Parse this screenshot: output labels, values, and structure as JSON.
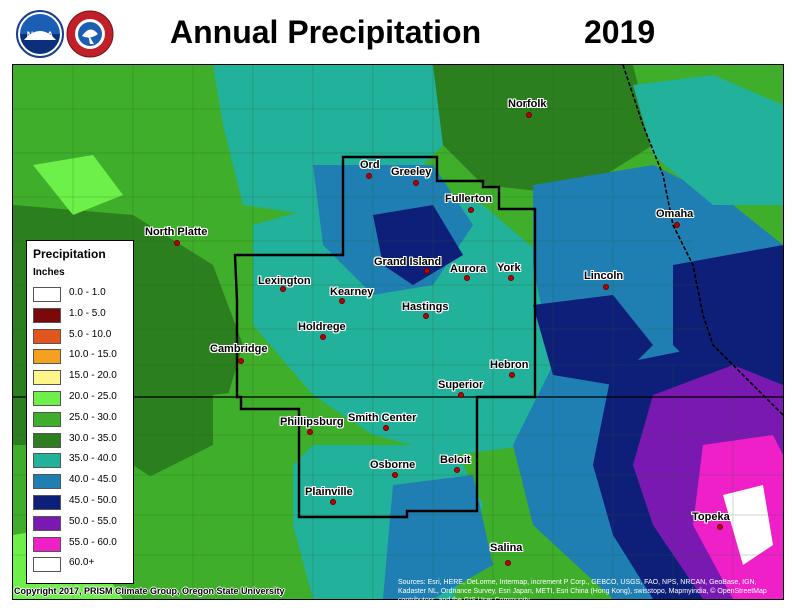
{
  "header": {
    "title": "Annual Precipitation",
    "year": "2019"
  },
  "logos": [
    {
      "name": "noaa-logo",
      "text": "NOAA"
    },
    {
      "name": "nws-logo",
      "text": "NATIONAL WEATHER SERVICE"
    }
  ],
  "legend": {
    "title": "Precipitation",
    "unit": "Inches",
    "items": [
      {
        "label": "0.0 - 1.0",
        "color": "#ffffff"
      },
      {
        "label": "1.0 - 5.0",
        "color": "#7a0a0a"
      },
      {
        "label": "5.0 - 10.0",
        "color": "#e2561d"
      },
      {
        "label": "10.0 - 15.0",
        "color": "#f5a01e"
      },
      {
        "label": "15.0 - 20.0",
        "color": "#fbf58a"
      },
      {
        "label": "20.0 - 25.0",
        "color": "#6ef04a"
      },
      {
        "label": "25.0 - 30.0",
        "color": "#3fae2a"
      },
      {
        "label": "30.0 - 35.0",
        "color": "#2b7f1f"
      },
      {
        "label": "35.0 - 40.0",
        "color": "#22b19a"
      },
      {
        "label": "40.0 - 45.0",
        "color": "#1f7fb3"
      },
      {
        "label": "45.0 - 50.0",
        "color": "#0d1f78"
      },
      {
        "label": "50.0 - 55.0",
        "color": "#7a19b2"
      },
      {
        "label": "55.0 - 60.0",
        "color": "#f020c8"
      },
      {
        "label": "60.0+",
        "color": "#ffffff"
      }
    ]
  },
  "cities": [
    {
      "name": "Norfolk"
    },
    {
      "name": "Ord"
    },
    {
      "name": "Greeley"
    },
    {
      "name": "Fullerton"
    },
    {
      "name": "Omaha"
    },
    {
      "name": "North Platte"
    },
    {
      "name": "Grand Island"
    },
    {
      "name": "Aurora"
    },
    {
      "name": "York"
    },
    {
      "name": "Lincoln"
    },
    {
      "name": "Lexington"
    },
    {
      "name": "Kearney"
    },
    {
      "name": "Hastings"
    },
    {
      "name": "Holdrege"
    },
    {
      "name": "Cambridge"
    },
    {
      "name": "Hebron"
    },
    {
      "name": "Superior"
    },
    {
      "name": "Phillipsburg"
    },
    {
      "name": "Smith Center"
    },
    {
      "name": "Osborne"
    },
    {
      "name": "Beloit"
    },
    {
      "name": "Plainville"
    },
    {
      "name": "Topeka"
    },
    {
      "name": "Salina"
    }
  ],
  "footer": {
    "copyright": "Copyright 2017, PRISM Climate Group, Oregon State University",
    "sources": "Sources: Esri, HERE, DeLorme, Intermap, increment P Corp., GEBCO, USGS, FAO, NPS, NRCAN, GeoBase, IGN, Kadaster NL, Ordnance Survey, Esri Japan, METI, Esri China (Hong Kong), swisstopo, Mapmyindia, © OpenStreetMap contributors, and the GIS User Community"
  }
}
